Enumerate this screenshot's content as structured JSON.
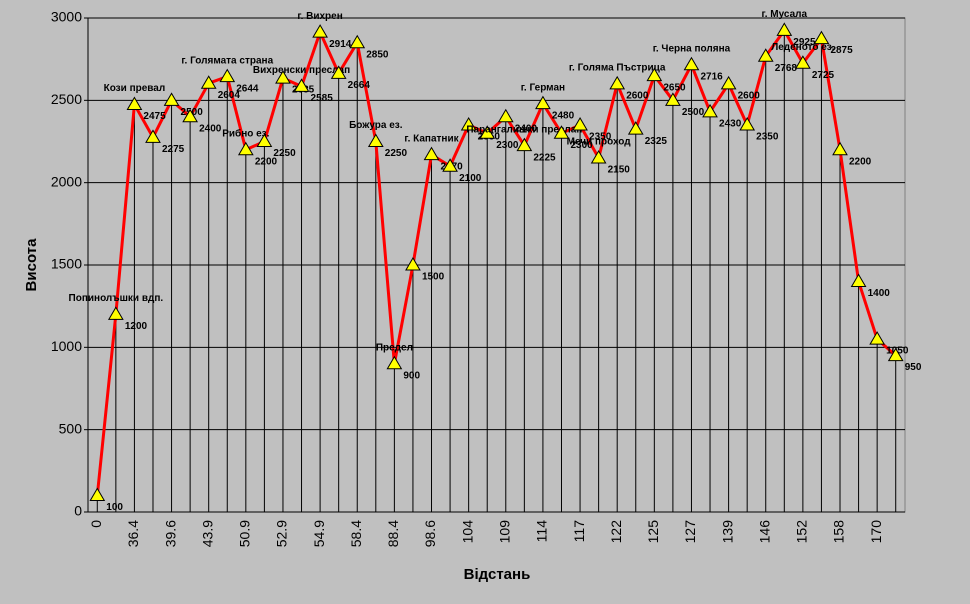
{
  "chart_data": {
    "type": "line",
    "x_label": "Відстань",
    "y_label": "Висота",
    "categories": [
      "0",
      null,
      "36.4",
      null,
      "39.6",
      null,
      "43.9",
      null,
      "50.9",
      null,
      "52.9",
      null,
      "54.9",
      null,
      "58.4",
      null,
      "88.4",
      null,
      "98.6",
      null,
      "104",
      null,
      "109",
      null,
      "114",
      null,
      "117",
      null,
      "122",
      null,
      "125",
      null,
      "127",
      null,
      "139",
      null,
      "146",
      null,
      "152",
      null,
      "158",
      null,
      "170",
      null
    ],
    "series": [
      {
        "color": "#ff0000",
        "marker_color": "#ffff00",
        "values": [
          100,
          1200,
          2475,
          2275,
          2500,
          2400,
          2604,
          2644,
          2200,
          2250,
          2635,
          2585,
          2914,
          2664,
          2850,
          2250,
          900,
          1500,
          2170,
          2100,
          2350,
          2300,
          2400,
          2225,
          2480,
          2300,
          2350,
          2150,
          2600,
          2325,
          2650,
          2500,
          2716,
          2430,
          2600,
          2350,
          2768,
          2925,
          2725,
          2875,
          2200,
          1400,
          1050,
          950
        ],
        "point_names": [
          null,
          "Попинолъшки вдп.",
          "Кози превал",
          null,
          null,
          null,
          null,
          "г. Голямата страна",
          "Рибно ез.",
          null,
          null,
          "Вихренски преслап",
          "г. Вихрен",
          null,
          null,
          "Божура ез.",
          "Предел",
          null,
          "г. Капатник",
          null,
          null,
          null,
          null,
          "Парангалишки преслап",
          "г. Герман",
          null,
          null,
          "Мечи проход",
          "г. Голяма Пъстрица",
          null,
          null,
          null,
          "г. Черна поляна",
          null,
          null,
          null,
          null,
          "г. Мусала",
          "Леденото ез.",
          null,
          null,
          null,
          null,
          null
        ]
      }
    ],
    "ylim": [
      0,
      3000
    ],
    "yticks": [
      0,
      500,
      1000,
      1500,
      2000,
      2500,
      3000
    ],
    "grid": true
  }
}
